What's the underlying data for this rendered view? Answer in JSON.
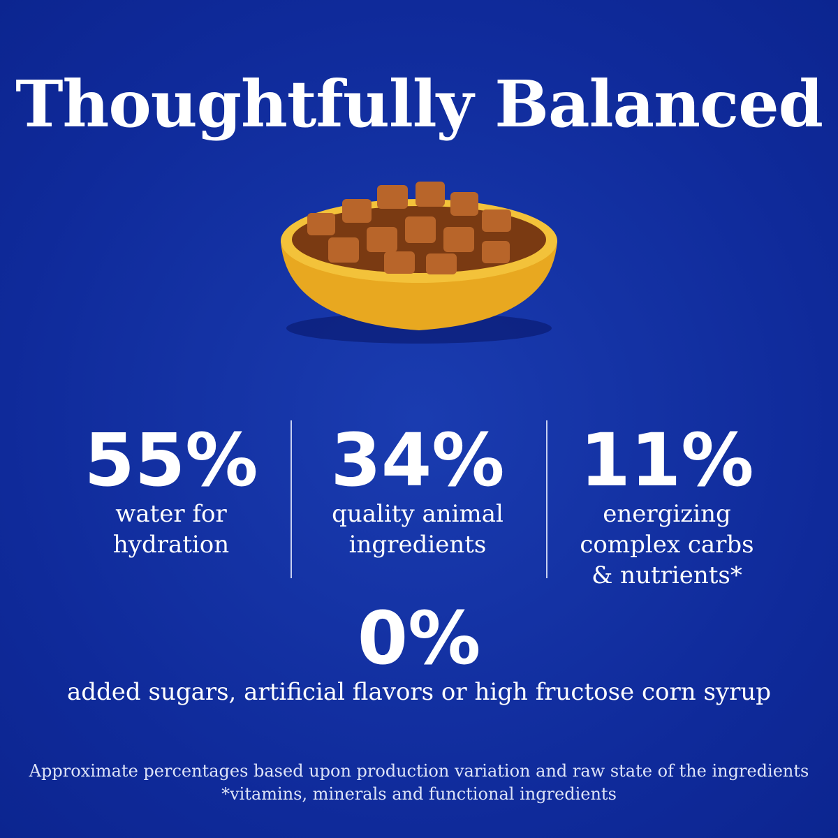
{
  "title": "Thoughtfully Balanced",
  "stats": [
    {
      "value": "55%",
      "lines": [
        "water for",
        "hydration"
      ]
    },
    {
      "value": "34%",
      "lines": [
        "quality animal",
        "ingredients"
      ]
    },
    {
      "value": "11%",
      "lines": [
        "energizing",
        "complex carbs",
        "& nutrients*"
      ]
    }
  ],
  "highlight": {
    "value": "0%",
    "text": "added sugars, artificial flavors or high fructose corn syrup"
  },
  "footnotes": [
    "Approximate percentages based upon production variation and raw state of the ingredients",
    "*vitamins, minerals and functional ingredients"
  ]
}
